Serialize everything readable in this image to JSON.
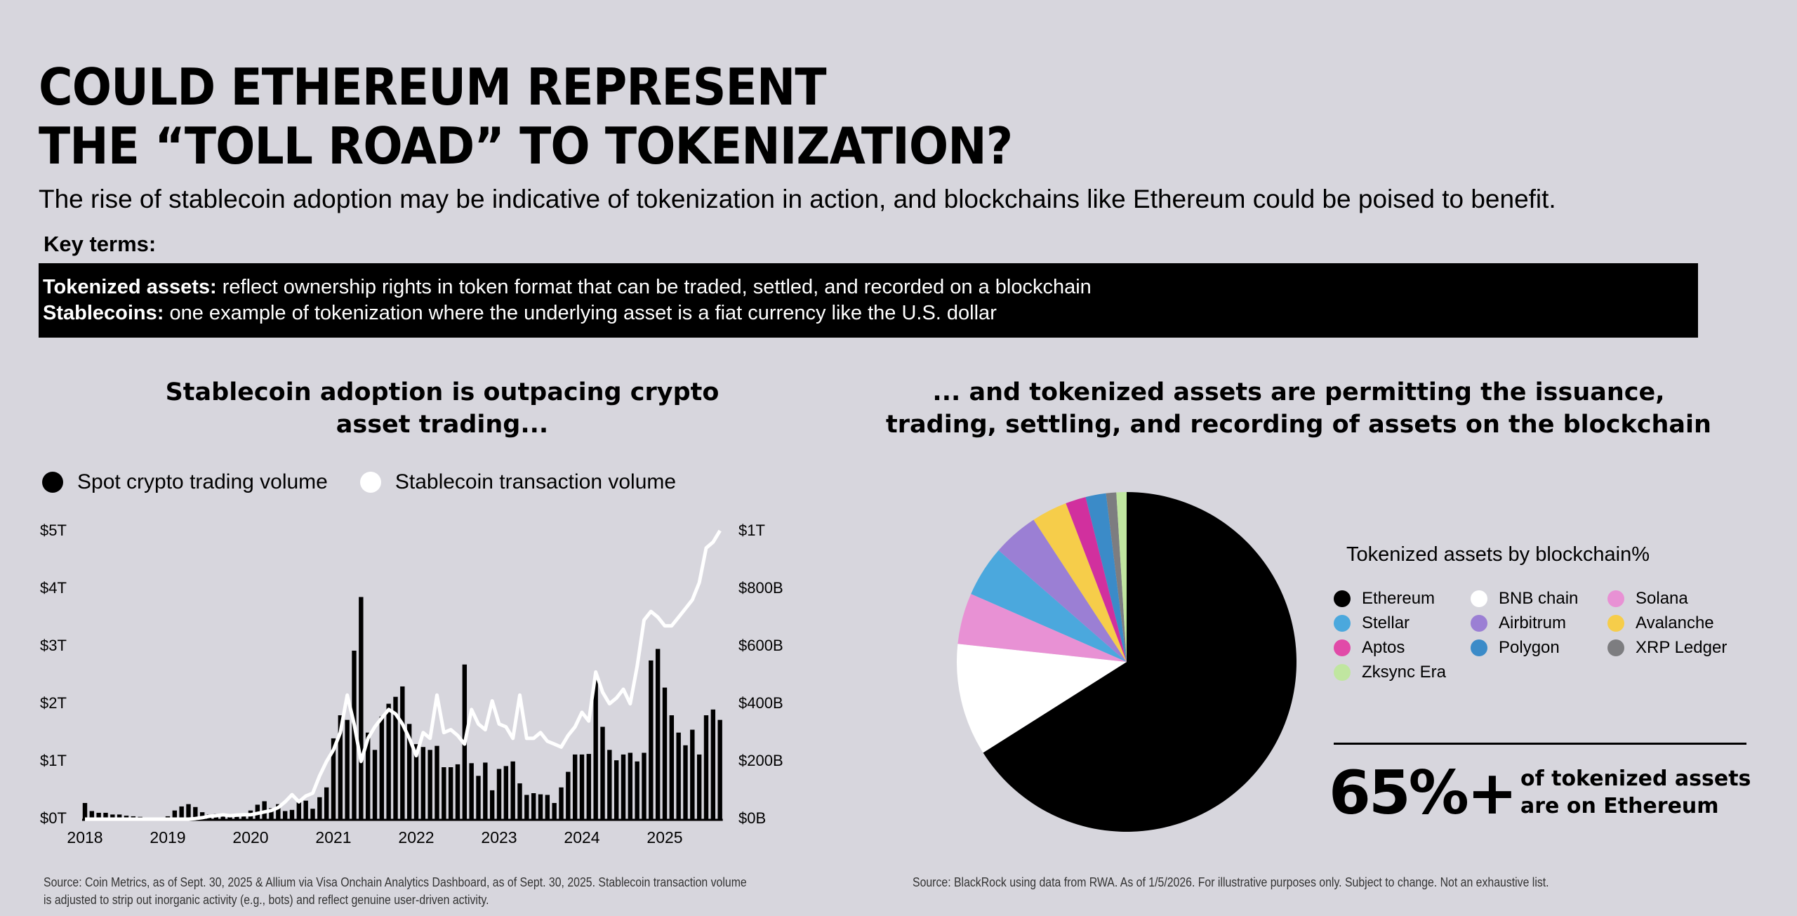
{
  "header": {
    "title_line1": "COULD ETHEREUM REPRESENT",
    "title_line2": "THE “TOLL ROAD” TO TOKENIZATION?",
    "subtitle": "The rise of stablecoin adoption may be indicative of tokenization in action, and blockchains like Ethereum could be poised to benefit."
  },
  "key_terms": {
    "label": "Key terms:",
    "items": [
      {
        "term": "Tokenized assets:",
        "definition": " reflect ownership rights in token format that can be traded, settled, and recorded on a blockchain"
      },
      {
        "term": "Stablecoins:",
        "definition": " one example of tokenization where the underlying asset is a fiat currency like the U.S. dollar"
      }
    ]
  },
  "left_panel": {
    "heading_line1": "Stablecoin adoption is outpacing crypto",
    "heading_line2": "asset trading...",
    "legend": [
      {
        "label": "Spot crypto trading volume",
        "color": "#000000"
      },
      {
        "label": "Stablecoin transaction volume",
        "color": "#ffffff"
      }
    ],
    "source_line1": "Source: Coin Metrics, as of Sept. 30, 2025 & Allium via Visa Onchain Analytics Dashboard, as of Sept. 30, 2025. Stablecoin transaction volume",
    "source_line2": "is adjusted to strip out inorganic activity (e.g., bots) and reflect genuine user-driven activity."
  },
  "right_panel": {
    "heading_line1": "... and  tokenized assets are permitting the issuance,",
    "heading_line2": "trading, settling, and recording of assets on the blockchain",
    "legend_title": "Tokenized assets by blockchain%",
    "stat_value": "65%+",
    "stat_line1": "of tokenized assets",
    "stat_line2": "are on Ethereum",
    "source": "Source: BlackRock using data from RWA. As of 1/5/2026. For illustrative purposes only. Subject to change. Not an exhaustive list."
  },
  "chart_data": [
    {
      "type": "bar",
      "title": "Stablecoin adoption is outpacing crypto asset trading...",
      "xlabel": "",
      "ylabel_left": "Spot crypto trading volume ($T)",
      "ylabel_right": "Stablecoin transaction volume ($B)",
      "y_left_ticks": [
        "$0T",
        "$1T",
        "$2T",
        "$3T",
        "$4T",
        "$5T"
      ],
      "y_right_ticks": [
        "$0B",
        "$200B",
        "$400B",
        "$600B",
        "$800B",
        "$1T"
      ],
      "ylim_left": [
        0,
        5
      ],
      "ylim_right": [
        0,
        1000
      ],
      "x_ticks": [
        "2018",
        "2019",
        "2020",
        "2021",
        "2022",
        "2023",
        "2024",
        "2025"
      ],
      "grid": false,
      "legend_position": "top-left",
      "start": "2018-01",
      "frequency": "monthly",
      "series": [
        {
          "name": "Spot crypto trading volume",
          "type": "bar",
          "axis": "left",
          "color": "#000000",
          "values": [
            0.28,
            0.14,
            0.11,
            0.11,
            0.08,
            0.08,
            0.06,
            0.05,
            0.04,
            0.03,
            0.03,
            0.02,
            0.05,
            0.15,
            0.22,
            0.26,
            0.21,
            0.12,
            0.08,
            0.09,
            0.06,
            0.06,
            0.04,
            0.05,
            0.15,
            0.25,
            0.31,
            0.19,
            0.26,
            0.14,
            0.16,
            0.29,
            0.32,
            0.18,
            0.38,
            0.55,
            1.4,
            1.8,
            1.72,
            2.92,
            3.85,
            1.5,
            1.2,
            1.78,
            2.0,
            2.12,
            2.3,
            1.65,
            1.3,
            1.25,
            1.2,
            1.27,
            0.9,
            0.9,
            0.95,
            2.68,
            0.97,
            0.75,
            0.98,
            0.5,
            0.87,
            0.92,
            1.0,
            0.62,
            0.42,
            0.45,
            0.43,
            0.42,
            0.28,
            0.55,
            0.82,
            1.12,
            1.12,
            1.13,
            2.45,
            1.6,
            1.2,
            1.02,
            1.12,
            1.15,
            1.0,
            1.15,
            2.75,
            2.95,
            2.28,
            1.8,
            1.5,
            1.28,
            1.55,
            1.12,
            1.8,
            1.9,
            1.72
          ]
        },
        {
          "name": "Stablecoin transaction volume",
          "type": "line",
          "axis": "right",
          "color": "#ffffff",
          "values": [
            0,
            0,
            0,
            0,
            0,
            0,
            0,
            0,
            0,
            0,
            0,
            0,
            0,
            0,
            0,
            0,
            2,
            5,
            10,
            12,
            15,
            12,
            14,
            15,
            15,
            20,
            25,
            30,
            40,
            60,
            85,
            60,
            80,
            90,
            150,
            200,
            240,
            300,
            430,
            330,
            200,
            280,
            320,
            350,
            380,
            365,
            330,
            280,
            220,
            300,
            280,
            430,
            300,
            310,
            290,
            260,
            380,
            330,
            310,
            410,
            330,
            320,
            280,
            430,
            280,
            280,
            300,
            270,
            260,
            250,
            290,
            320,
            370,
            340,
            510,
            440,
            400,
            420,
            450,
            400,
            530,
            690,
            720,
            700,
            670,
            670,
            700,
            730,
            760,
            820,
            940,
            960,
            1000
          ]
        }
      ]
    },
    {
      "type": "pie",
      "title": "Tokenized assets by blockchain%",
      "categories": [
        "Ethereum",
        "BNB chain",
        "Solana",
        "Stellar",
        "Airbitrum",
        "Avalanche",
        "Aptos",
        "Polygon",
        "XRP Ledger",
        "Zksync Era"
      ],
      "values": [
        68,
        11,
        5,
        5,
        4.5,
        3.5,
        2,
        2,
        1,
        1
      ],
      "colors": [
        "#000000",
        "#ffffff",
        "#e891d4",
        "#4ba8dd",
        "#9b7fd4",
        "#f6cd4a",
        "#d1309e",
        "#3b8bc8",
        "#7d7d80",
        "#c0e6a0"
      ],
      "annotation": "65%+ of tokenized assets are on Ethereum",
      "start_angle_deg": 0,
      "direction": "clockwise"
    }
  ],
  "pie_legend": [
    {
      "label": "Ethereum",
      "color": "#000000"
    },
    {
      "label": "BNB chain",
      "color": "#ffffff"
    },
    {
      "label": "Solana",
      "color": "#e891d4"
    },
    {
      "label": "Stellar",
      "color": "#4ba8dd"
    },
    {
      "label": "Airbitrum",
      "color": "#9b7fd4"
    },
    {
      "label": "Avalanche",
      "color": "#f6cd4a"
    },
    {
      "label": "Aptos",
      "color": "#e14aa8"
    },
    {
      "label": "Polygon",
      "color": "#3b8bc8"
    },
    {
      "label": "XRP Ledger",
      "color": "#7d7d80"
    },
    {
      "label": "Zksync Era",
      "color": "#c0e6a0"
    }
  ]
}
